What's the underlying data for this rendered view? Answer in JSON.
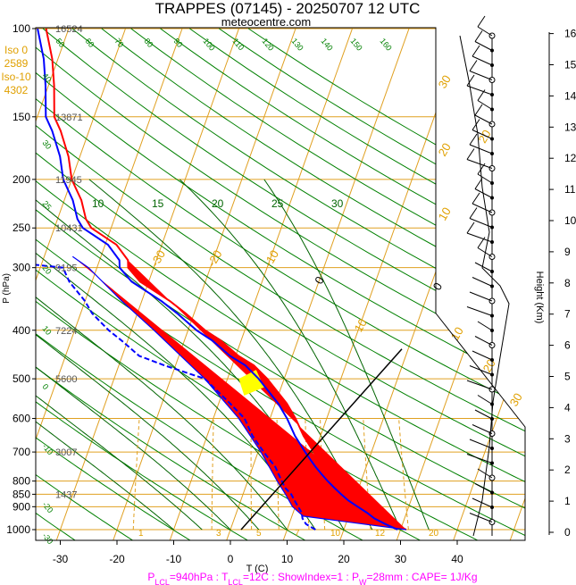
{
  "header": {
    "title": "TRAPPES (07145) - 20250707 12 UTC",
    "site": "meteocentre.com"
  },
  "iso_info": [
    "Iso 0",
    "2589",
    "Iso-10",
    "4302"
  ],
  "footer": {
    "plcl_prefix": "P",
    "plcl_sub": "LCL",
    "plcl_val": "=940hPa : ",
    "tlcl_prefix": "T",
    "tlcl_sub": "LCL",
    "tlcl_val": "=12C : ShowIndex=1 : ",
    "pw_prefix": "P",
    "pw_sub": "W",
    "pw_val": "=28mm : CAPE= 1J/Kg"
  },
  "colors": {
    "isobar": "#e0a020",
    "dry_adiabat": "#008000",
    "moist_adiabat": "#006400",
    "temperature": "#ff0000",
    "dewpoint": "#0000ff",
    "parcel": "#0000ff",
    "cape_fill": "#ffff00",
    "cin_fill": "#ff0000",
    "footer_text": "#ff00ff",
    "label_orange": "#e0a000"
  },
  "chart_data": {
    "type": "line",
    "title": "TRAPPES (07145) - 20250707 12 UTC",
    "xlabel": "T (C)",
    "ylabel": "P (hPa)",
    "y2label": "Height (Km)",
    "y_scale": "log",
    "xlim": [
      -34,
      46
    ],
    "ylim": [
      1000,
      100
    ],
    "x_ticks": [
      "-30",
      "-20",
      "-10",
      "0",
      "10",
      "20",
      "30",
      "40"
    ],
    "pressure_levels": [
      {
        "p": 100,
        "label": "100",
        "height": "16524"
      },
      {
        "p": 150,
        "label": "150",
        "height": "13871"
      },
      {
        "p": 200,
        "label": "200",
        "height": "11945"
      },
      {
        "p": 250,
        "label": "250",
        "height": "10431"
      },
      {
        "p": 300,
        "label": "300",
        "height": "9195"
      },
      {
        "p": 400,
        "label": "400",
        "height": "7224"
      },
      {
        "p": 500,
        "label": "500",
        "height": "5600"
      },
      {
        "p": 600,
        "label": "600",
        "height": ""
      },
      {
        "p": 700,
        "label": "700",
        "height": "3007"
      },
      {
        "p": 800,
        "label": "800",
        "height": ""
      },
      {
        "p": 850,
        "label": "850",
        "height": "1437"
      },
      {
        "p": 900,
        "label": "900",
        "height": ""
      },
      {
        "p": 1000,
        "label": "1000",
        "height": ""
      }
    ],
    "height_ticks": [
      "0",
      "1",
      "2",
      "3",
      "4",
      "5",
      "6",
      "7",
      "8",
      "9",
      "10",
      "11",
      "12",
      "13",
      "14",
      "15",
      "16"
    ],
    "isotherm_labels": [
      "-30",
      "-20",
      "-10",
      "0",
      "10",
      "20",
      "30"
    ],
    "dry_adiabat_labels": [
      "50",
      "60",
      "70",
      "80",
      "90",
      "100",
      "110",
      "120",
      "130",
      "140",
      "150",
      "160",
      "40",
      "30",
      "25",
      "20",
      "10",
      "0",
      "-10",
      "-20",
      "-30"
    ],
    "moist_adiabat_labels": [
      "10",
      "15",
      "20",
      "25",
      "30"
    ],
    "mixing_ratio_labels": [
      "1",
      "3",
      "5",
      "7",
      "10",
      "12",
      "20"
    ],
    "hodograph_labels": [
      "30",
      "20",
      "10",
      "0",
      "10",
      "20",
      "30"
    ],
    "series": [
      {
        "name": "temperature",
        "p": [
          1000,
          975,
          950,
          925,
          900,
          875,
          850,
          825,
          800,
          775,
          750,
          725,
          700,
          650,
          600,
          560,
          500,
          470,
          450,
          420,
          400,
          370,
          350,
          320,
          300,
          290,
          270,
          250,
          240,
          220,
          200,
          180,
          160,
          150,
          130,
          115,
          100
        ],
        "t": [
          31.0,
          28.5,
          26.2,
          24.5,
          22.5,
          20.5,
          18.8,
          17.2,
          15.6,
          14.1,
          12.6,
          11.2,
          9.8,
          7.0,
          4.5,
          2.0,
          -3.0,
          -6.2,
          -9.5,
          -13.5,
          -17.0,
          -21.5,
          -25.0,
          -31.5,
          -34.5,
          -35.0,
          -38.0,
          -43.5,
          -45.0,
          -47.0,
          -50.0,
          -52.0,
          -55.0,
          -57.0,
          -59.0,
          -61.0,
          -64.0
        ]
      },
      {
        "name": "dewpoint",
        "p": [
          1000,
          975,
          950,
          925,
          900,
          875,
          850,
          825,
          800,
          775,
          750,
          725,
          700,
          650,
          600,
          560,
          500,
          470,
          450,
          420,
          400,
          370,
          350,
          320,
          300,
          290,
          270,
          250,
          240,
          220,
          200,
          180,
          160,
          150,
          130,
          115,
          100
        ],
        "td": [
          15.0,
          13.0,
          12.0,
          11.5,
          10.5,
          9.5,
          8.5,
          7.0,
          6.0,
          5.0,
          4.0,
          2.5,
          1.0,
          -2.0,
          -4.5,
          -8.0,
          -14.0,
          -22.0,
          -27.0,
          -31.0,
          -34.0,
          -38.0,
          -40.0,
          -44.0,
          -46.0,
          -59.0,
          -68.0,
          -76.0,
          -79.0,
          -82.0,
          -87.0,
          -89.0,
          -93.0,
          -95.0,
          -96.0,
          -97.0,
          -98.0
        ]
      },
      {
        "name": "parcel",
        "p": [
          1000,
          940,
          900,
          850,
          800,
          700,
          600,
          500,
          400,
          350,
          300,
          285
        ],
        "t": [
          31.0,
          12.0,
          9.5,
          7.5,
          5.2,
          0.5,
          -5.5,
          -14.0,
          -26.0,
          -33.5,
          -41.5,
          -45.0
        ]
      }
    ]
  }
}
